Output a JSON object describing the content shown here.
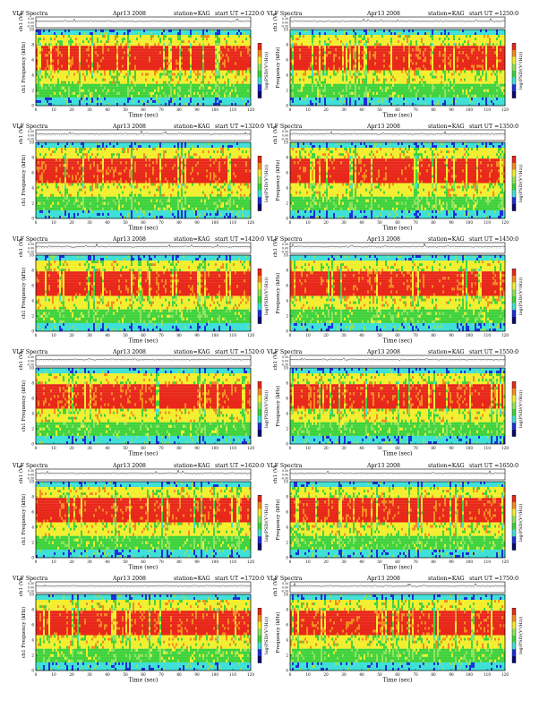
{
  "colors": {
    "red": "#e8281a",
    "orange": "#f48a1e",
    "yellow": "#f2ee2c",
    "green": "#3fd23c",
    "light_green": "#8ee35a",
    "cyan": "#3fe0d8",
    "blue": "#1f2fd8",
    "navy": "#0a0a6e"
  },
  "common": {
    "header_left": "VLF Spectra",
    "date": "Apr13 2008",
    "station": "station=KAG",
    "top_ylabel": "ch1 (V)",
    "top_ticks": [
      "0.30",
      "0.00",
      "-0.30"
    ],
    "spec_ylabel_left": "Frequency (kHz)",
    "spec_ylabel_alt": "ch1 Frequency (kHz)",
    "colorbar_label": "log(PSD/(V²/Hz))",
    "xlabel": "Time (sec)",
    "xticks": [
      "0",
      "10",
      "20",
      "30",
      "40",
      "50",
      "60",
      "70",
      "80",
      "90",
      "100",
      "110",
      "120"
    ],
    "yticks": [
      "0",
      "2",
      "4",
      "6",
      "8",
      "10"
    ]
  },
  "panels": [
    {
      "start": "start UT =1220:0"
    },
    {
      "start": "start UT =1250:0"
    },
    {
      "start": "start UT =1320:0"
    },
    {
      "start": "start UT =1350:0"
    },
    {
      "start": "start UT =1420:0"
    },
    {
      "start": "start UT =1450:0"
    },
    {
      "start": "start UT =1520:0"
    },
    {
      "start": "start UT =1550:0"
    },
    {
      "start": "start UT =1620:0"
    },
    {
      "start": "start UT =1650:0"
    },
    {
      "start": "start UT =1720:0"
    },
    {
      "start": "start UT =1750:0"
    }
  ],
  "chart_data": {
    "type": "heatmap",
    "description_units": "spectrogram of ch1, x = time (sec), y = frequency (kHz)",
    "x_range": [
      0,
      120
    ],
    "y_range": [
      0,
      10
    ],
    "bands_khz": [
      {
        "from": 0,
        "to": 1,
        "level": "cyan"
      },
      {
        "from": 1,
        "to": 3,
        "level": "green"
      },
      {
        "from": 3,
        "to": 4.5,
        "level": "yellow"
      },
      {
        "from": 4.5,
        "to": 8,
        "level": "red"
      },
      {
        "from": 8,
        "to": 9.3,
        "level": "yellow"
      },
      {
        "from": 9.3,
        "to": 10,
        "level": "cyan"
      }
    ]
  }
}
